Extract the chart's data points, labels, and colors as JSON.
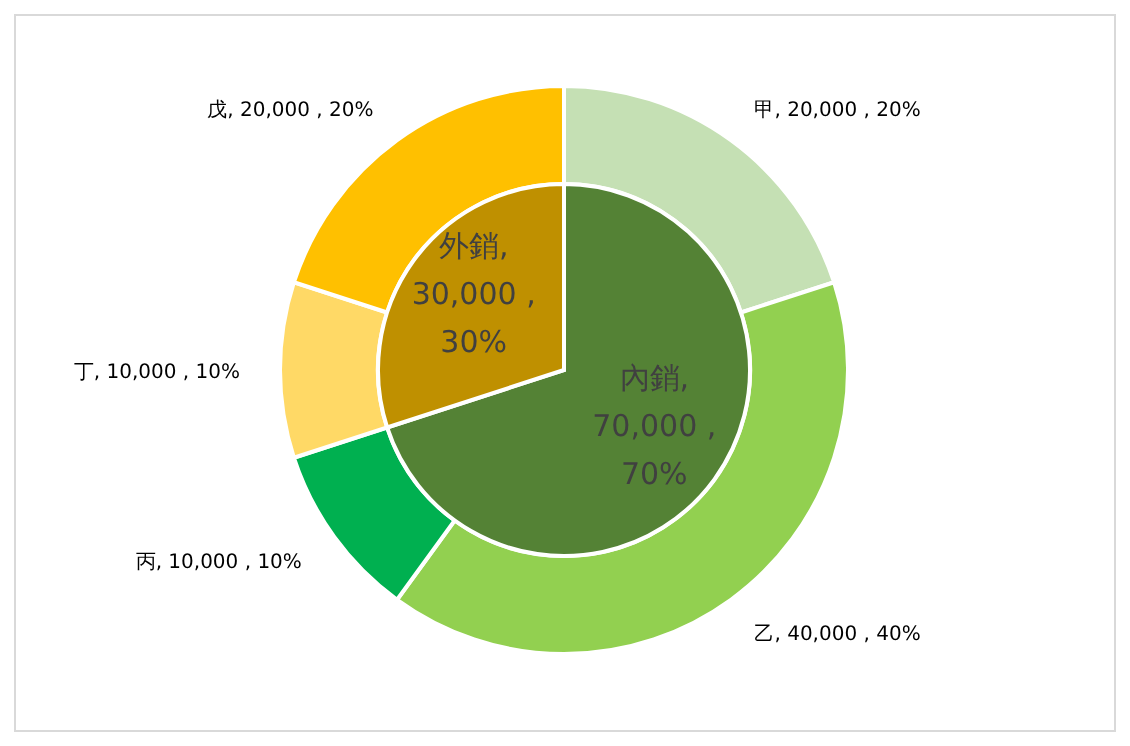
{
  "chart_data": [
    {
      "type": "pie",
      "categories": [
        "內銷",
        "外銷"
      ],
      "values": [
        70000,
        30000
      ],
      "colors": [
        "#548235",
        "#bf9000"
      ],
      "value_labels": [
        ", 70,000 , 70%",
        ", 30,000 , 30%"
      ]
    },
    {
      "type": "donut",
      "categories": [
        "甲",
        "乙",
        "丙",
        "丁",
        "戊"
      ],
      "values": [
        20000,
        40000,
        10000,
        10000,
        20000
      ],
      "colors": [
        "#c5e0b4",
        "#92d050",
        "#00b050",
        "#ffd966",
        "#ffc000"
      ],
      "value_labels": [
        "20,000 , 20%",
        "40,000 , 40%",
        "10,000 , 10%",
        "10,000 , 10%",
        "20,000 , 20%"
      ]
    }
  ]
}
